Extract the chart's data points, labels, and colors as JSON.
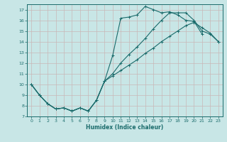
{
  "xlabel": "Humidex (Indice chaleur)",
  "xlim": [
    -0.5,
    23.5
  ],
  "ylim": [
    7,
    17.5
  ],
  "xticks": [
    0,
    1,
    2,
    3,
    4,
    5,
    6,
    7,
    8,
    9,
    10,
    11,
    12,
    13,
    14,
    15,
    16,
    17,
    18,
    19,
    20,
    21,
    22,
    23
  ],
  "yticks": [
    7,
    8,
    9,
    10,
    11,
    12,
    13,
    14,
    15,
    16,
    17
  ],
  "bg_color": "#c8e6e6",
  "grid_color": "#dde8e8",
  "line_color": "#1a6b6b",
  "line1_x": [
    0,
    1,
    2,
    3,
    4,
    5,
    6,
    7,
    8,
    9,
    10,
    11,
    12,
    13,
    14,
    15,
    16,
    17,
    18,
    19,
    20,
    21
  ],
  "line1_y": [
    10,
    9,
    8.2,
    7.7,
    7.8,
    7.5,
    7.8,
    7.5,
    8.5,
    10.3,
    12.7,
    16.2,
    16.3,
    16.5,
    17.3,
    17.0,
    16.7,
    16.8,
    16.5,
    16.0,
    15.9,
    14.7
  ],
  "line2_x": [
    0,
    1,
    2,
    3,
    4,
    5,
    6,
    7,
    8,
    9,
    10,
    11,
    12,
    13,
    14,
    15,
    16,
    17,
    18,
    19,
    20,
    21,
    22,
    23
  ],
  "line2_y": [
    10,
    9,
    8.2,
    7.7,
    7.8,
    7.5,
    7.8,
    7.5,
    8.5,
    10.3,
    11.0,
    12.0,
    12.8,
    13.5,
    14.3,
    15.2,
    16.0,
    16.7,
    16.7,
    16.7,
    16.0,
    15.0,
    14.7,
    14.0
  ],
  "line3_x": [
    0,
    1,
    2,
    3,
    4,
    5,
    6,
    7,
    8,
    9,
    10,
    11,
    12,
    13,
    14,
    15,
    16,
    17,
    18,
    19,
    20,
    21,
    22,
    23
  ],
  "line3_y": [
    10,
    9,
    8.2,
    7.7,
    7.8,
    7.5,
    7.8,
    7.5,
    8.5,
    10.3,
    10.8,
    11.3,
    11.8,
    12.3,
    12.9,
    13.4,
    14.0,
    14.5,
    15.0,
    15.5,
    15.8,
    15.3,
    14.8,
    14.0
  ]
}
